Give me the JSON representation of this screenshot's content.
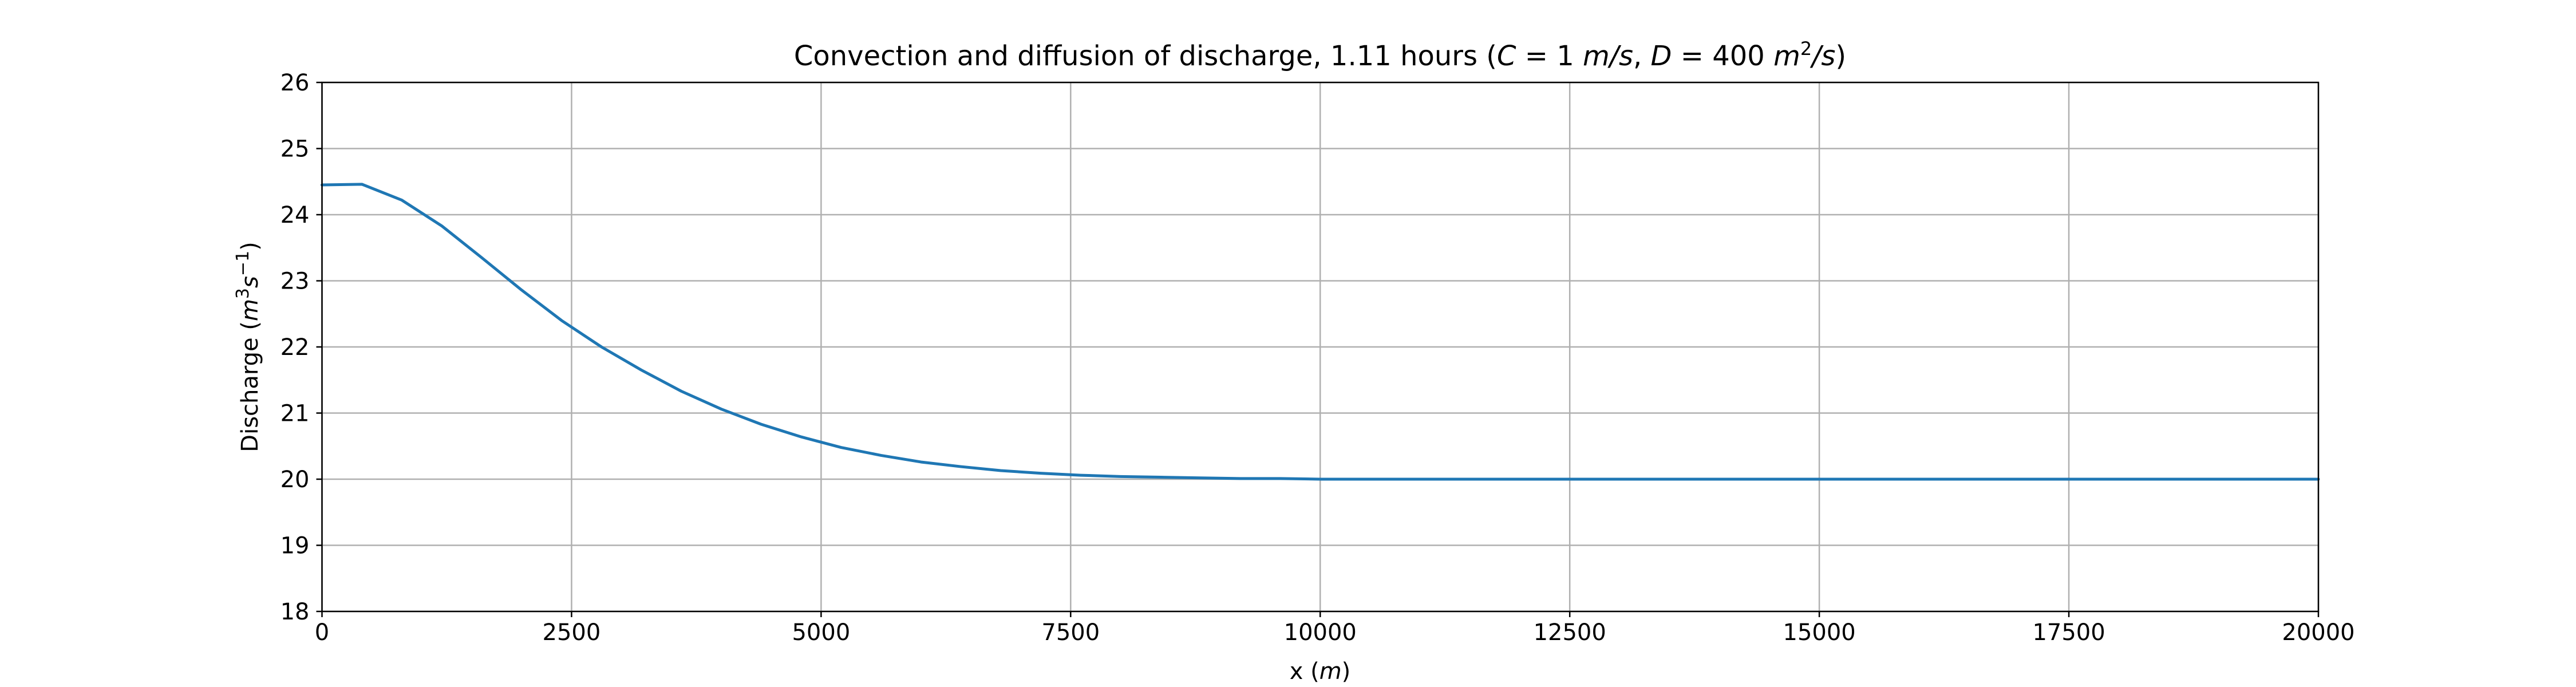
{
  "chart_data": {
    "type": "line",
    "title": "Convection and diffusion of discharge, 1.11 hours (C = 1 m/s, D = 400 m²/s)",
    "title_parts": {
      "prefix": "Convection and diffusion of discharge, 1.11 hours (",
      "c_var": "C",
      "c_value": " = 1 ",
      "c_unit": "m/s",
      "sep": ", ",
      "d_var": "D",
      "d_value": " = 400 ",
      "d_unit_m": "m",
      "d_unit_exp": "2",
      "d_unit_s": "/s",
      "suffix": ")"
    },
    "xlabel": "x (m)",
    "xlabel_parts": {
      "text": "x (",
      "unit": "m",
      "close": ")"
    },
    "ylabel": "Discharge (m³s⁻¹)",
    "ylabel_parts": {
      "text": "Discharge (",
      "unit_m": "m",
      "exp1": "3",
      "unit_s": "s",
      "exp2": "−1",
      "close": ")"
    },
    "xlim": [
      0,
      20000
    ],
    "ylim": [
      18,
      26
    ],
    "xticks": [
      0,
      2500,
      5000,
      7500,
      10000,
      12500,
      15000,
      17500,
      20000
    ],
    "yticks": [
      18,
      19,
      20,
      21,
      22,
      23,
      24,
      25,
      26
    ],
    "xtick_labels": [
      "0",
      "2500",
      "5000",
      "7500",
      "10000",
      "12500",
      "15000",
      "17500",
      "20000"
    ],
    "ytick_labels": [
      "18",
      "19",
      "20",
      "21",
      "22",
      "23",
      "24",
      "25",
      "26"
    ],
    "grid": true,
    "colors": {
      "line": "#1f77b4",
      "grid": "#b0b0b0",
      "axes": "#000000"
    },
    "series": [
      {
        "x": [
          0,
          400,
          800,
          1200,
          1600,
          2000,
          2400,
          2800,
          3200,
          3600,
          4000,
          4400,
          4800,
          5200,
          5600,
          6000,
          6400,
          6800,
          7200,
          7600,
          8000,
          8400,
          8800,
          9200,
          9600,
          10000,
          11000,
          12000,
          14000,
          16000,
          18000,
          20000
        ],
        "y": [
          24.45,
          24.46,
          24.22,
          23.83,
          23.35,
          22.86,
          22.4,
          22.0,
          21.65,
          21.33,
          21.06,
          20.83,
          20.64,
          20.48,
          20.36,
          20.26,
          20.19,
          20.13,
          20.09,
          20.06,
          20.04,
          20.03,
          20.02,
          20.01,
          20.01,
          20.0,
          20.0,
          20.0,
          20.0,
          20.0,
          20.0,
          20.0
        ]
      }
    ]
  }
}
